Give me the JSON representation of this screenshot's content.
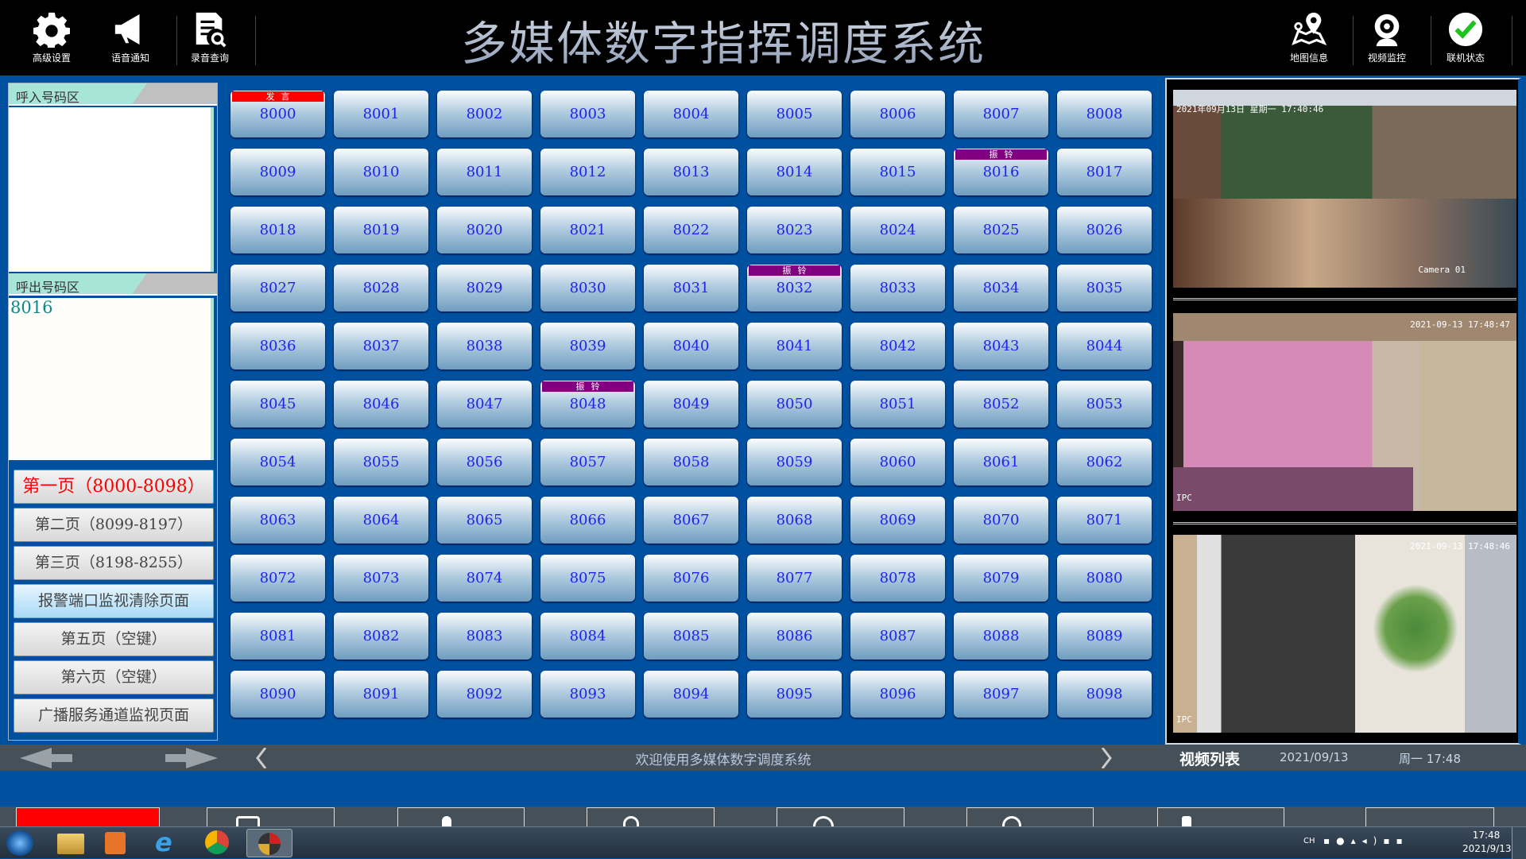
{
  "header": {
    "title": "多媒体数字指挥调度系统",
    "left_tools": [
      {
        "label": "高级设置",
        "icon": "gear-icon"
      },
      {
        "label": "语音通知",
        "icon": "megaphone-icon"
      },
      {
        "label": "录音查询",
        "icon": "document-search-icon"
      }
    ],
    "right_tools": [
      {
        "label": "地图信息",
        "icon": "map-pin-icon"
      },
      {
        "label": "视频监控",
        "icon": "webcam-icon"
      },
      {
        "label": "联机状态",
        "icon": "check-circle-icon"
      }
    ]
  },
  "left_panel": {
    "incoming_title": "呼入号码区",
    "incoming_numbers": "",
    "outgoing_title": "呼出号码区",
    "outgoing_number": "8016",
    "pages": [
      {
        "label": "第一页（8000-8098）",
        "state": "active"
      },
      {
        "label": "第二页（8099-8197）",
        "state": "normal"
      },
      {
        "label": "第三页（8198-8255）",
        "state": "normal"
      },
      {
        "label": "报警端口监视清除页面",
        "state": "alarm"
      },
      {
        "label": "第五页（空键）",
        "state": "normal"
      },
      {
        "label": "第六页（空键）",
        "state": "normal"
      },
      {
        "label": "广播服务通道监视页面",
        "state": "normal"
      }
    ]
  },
  "extensions": {
    "first": 8000,
    "last": 8098,
    "columns": 9,
    "badges": {
      "8000": {
        "text": "发言",
        "color": "#ff0000"
      },
      "8016": {
        "text": "振铃",
        "color": "#800080"
      },
      "8032": {
        "text": "振铃",
        "color": "#800080"
      },
      "8048": {
        "text": "振铃",
        "color": "#800080"
      }
    }
  },
  "videos": [
    {
      "timestamp": "2021年09月13日 星期一 17:40:46",
      "camera": "Camera 01"
    },
    {
      "timestamp": "2021-09-13 17:48:47",
      "camera": "IPC"
    },
    {
      "timestamp": "2021-09-13 17:48:46",
      "camera": "IPC"
    }
  ],
  "status_bar": {
    "welcome": "欢迎使用多媒体数字调度系统",
    "video_list": "视频列表",
    "date": "2021/09/13",
    "weekday_time": "周一 17:48"
  },
  "taskbar": {
    "lang": "CH",
    "time": "17:48",
    "date": "2021/9/13"
  },
  "colors": {
    "background": "#0050a0",
    "speaking": "#ff0000",
    "ringing": "#800080",
    "extension_text": "#2222ee"
  }
}
